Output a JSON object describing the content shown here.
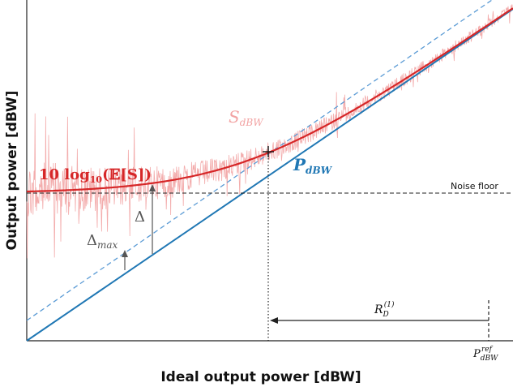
{
  "chart_data": {
    "type": "line",
    "xlabel": "Ideal output power [dBW]",
    "ylabel": "Output power [dBW]",
    "x_range": [
      0,
      1
    ],
    "y_range": [
      0,
      1
    ],
    "series": [
      {
        "name": "S_dBW",
        "label_main": "S",
        "label_sub": "dBW",
        "color": "#f2a3a3",
        "kind": "noisy"
      },
      {
        "name": "10 log10(E[S])",
        "label_main": "10 log",
        "label_sub": "10",
        "label_tail": "(𝔼[S])",
        "color": "#d62728"
      },
      {
        "name": "P_dBW",
        "label_main": "P",
        "label_sub": "dBW",
        "color": "#1f77b4"
      },
      {
        "name": "offset line",
        "color": "#5b9bd5",
        "style": "dashed"
      }
    ],
    "annotations": {
      "noise_floor": "Noise floor",
      "delta": "Δ",
      "delta_max_main": "Δ",
      "delta_max_sub": "max",
      "rd_main": "R",
      "rd_sub": "D",
      "rd_sup": "(1)",
      "pref_main": "P",
      "pref_sub": "dBW",
      "pref_sup": "ref"
    }
  }
}
